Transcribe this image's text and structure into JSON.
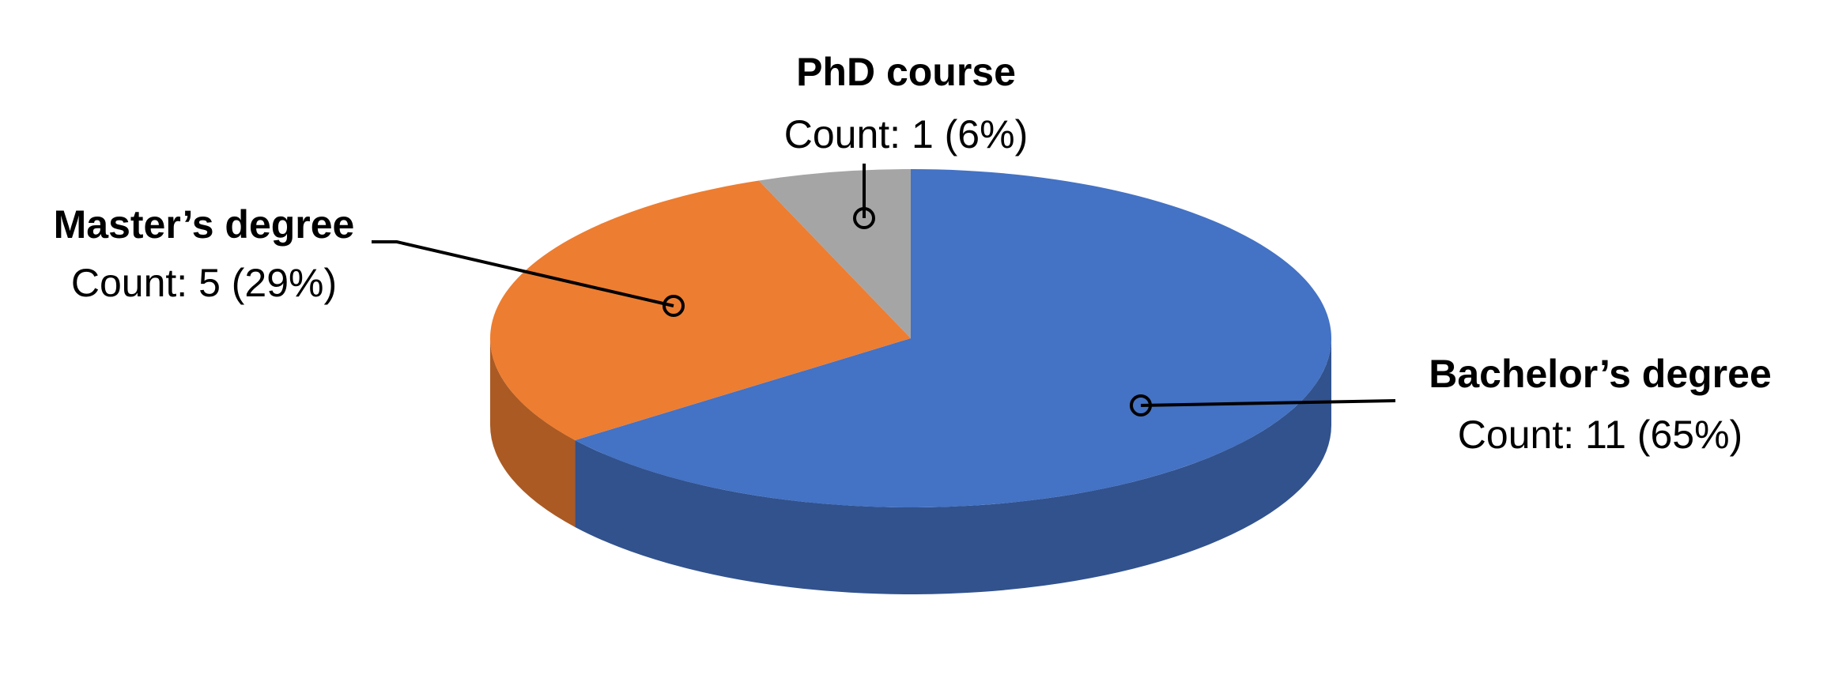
{
  "chart_data": {
    "type": "pie",
    "categories": [
      "Bachelor’s degree",
      "Master’s degree",
      "PhD course"
    ],
    "series": [
      {
        "colors": [
          "#4472c4",
          "#ed7d31",
          "#a5a5a5"
        ],
        "values": [
          11,
          5,
          1
        ],
        "value_labels": [
          "Count: 11 (65%)",
          "Count: 5 (29%)",
          "Count: 1 (6%)"
        ]
      }
    ]
  }
}
